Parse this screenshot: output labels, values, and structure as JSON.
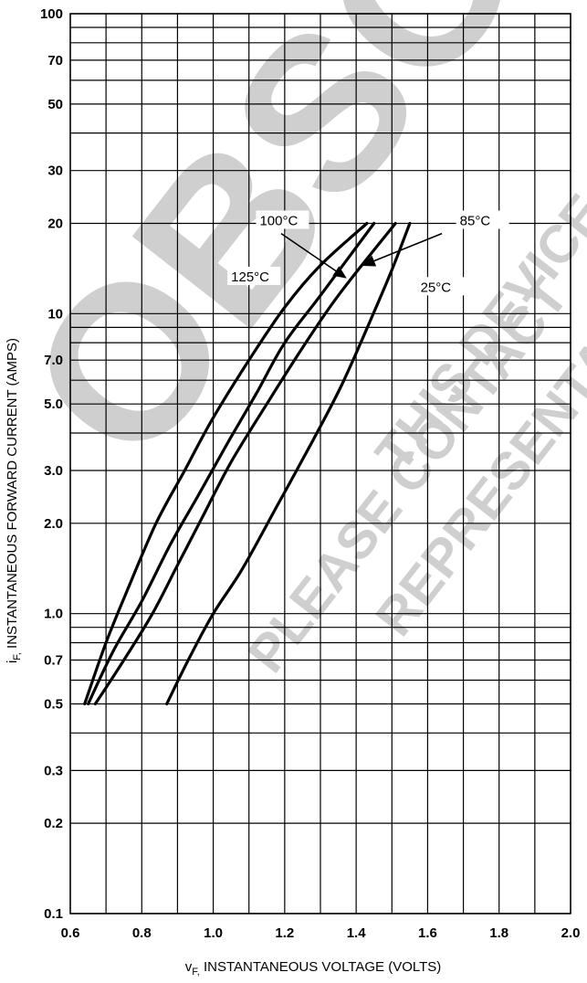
{
  "chart_data": {
    "type": "line",
    "xlabel": "vF, INSTANTANEOUS VOLTAGE (VOLTS)",
    "ylabel": "iF, INSTANTANEOUS FORWARD CURRENT (AMPS)",
    "xlim": [
      0.6,
      2.0
    ],
    "ylim": [
      0.1,
      100
    ],
    "yscale": "log",
    "grid": true,
    "x_ticks": [
      0.6,
      0.8,
      1.0,
      1.2,
      1.4,
      1.6,
      1.8,
      2.0
    ],
    "x_tick_labels": [
      "0.6",
      "0.8",
      "1.0",
      "1.2",
      "1.4",
      "1.6",
      "1.8",
      "2.0"
    ],
    "y_ticks": [
      0.1,
      0.2,
      0.3,
      0.5,
      0.7,
      1.0,
      2.0,
      3.0,
      5.0,
      7.0,
      10,
      20,
      30,
      50,
      70,
      100
    ],
    "y_tick_labels": [
      "0.1",
      "0.2",
      "0.3",
      "0.5",
      "0.7",
      "1.0",
      "2.0",
      "3.0",
      "5.0",
      "7.0",
      "10",
      "20",
      "30",
      "50",
      "70",
      "100"
    ],
    "series": [
      {
        "name": "125°C",
        "x": [
          0.64,
          0.7,
          0.76,
          0.84,
          0.92,
          1.0,
          1.1,
          1.2,
          1.3,
          1.43
        ],
        "y": [
          0.5,
          0.8,
          1.2,
          2.0,
          3.0,
          4.5,
          7.0,
          10.5,
          14.5,
          20
        ]
      },
      {
        "name": "100°C",
        "x": [
          0.65,
          0.72,
          0.8,
          0.88,
          0.96,
          1.04,
          1.12,
          1.2,
          1.3,
          1.45
        ],
        "y": [
          0.5,
          0.75,
          1.1,
          1.7,
          2.5,
          3.7,
          5.4,
          8.0,
          11.5,
          20
        ]
      },
      {
        "name": "85°C",
        "x": [
          0.67,
          0.75,
          0.83,
          0.9,
          0.97,
          1.05,
          1.15,
          1.25,
          1.35,
          1.51
        ],
        "y": [
          0.5,
          0.7,
          1.0,
          1.45,
          2.1,
          3.2,
          5.0,
          7.7,
          11.5,
          20
        ]
      },
      {
        "name": "25°C",
        "x": [
          0.87,
          0.93,
          1.0,
          1.08,
          1.18,
          1.28,
          1.36,
          1.44,
          1.5,
          1.55
        ],
        "y": [
          0.5,
          0.7,
          1.0,
          1.4,
          2.3,
          3.8,
          5.8,
          9.5,
          14.0,
          20
        ]
      }
    ],
    "annotations": [
      {
        "text": "100°C",
        "x": 1.13,
        "y": 20
      },
      {
        "text": "85°C",
        "x": 1.69,
        "y": 20
      },
      {
        "text": "125°C",
        "x": 1.05,
        "y": 13
      },
      {
        "text": "25°C",
        "x": 1.58,
        "y": 12
      }
    ]
  },
  "watermark": {
    "big": "OBSOLETE",
    "line1": "THIS DEVICE",
    "line2": "PLEASE CONTACT",
    "line3": "REPRESENTATIVE",
    "color": "#cfcfcf"
  }
}
